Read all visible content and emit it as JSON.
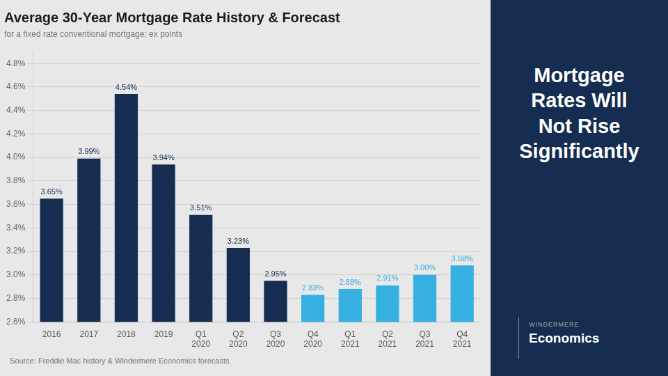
{
  "chart_data": {
    "type": "bar",
    "title": "Average 30-Year Mortgage Rate History & Forecast",
    "subtitle": "for a fixed rate conventional mortgage; ex points",
    "annotations": [
      "Source: Freddie Mac history & Windermere Economics forecasts",
      "Mortgage\nRates Will\nNot Rise\nSignificantly",
      "WINDERMERE",
      "Economics"
    ],
    "categories": [
      "2016",
      "2017",
      "2018",
      "2019",
      "Q1\n2020",
      "Q2\n2020",
      "Q3\n2020",
      "Q4\n2020",
      "Q1\n2021",
      "Q2\n2021",
      "Q3\n2021",
      "Q4\n2021"
    ],
    "values": [
      3.65,
      3.99,
      4.54,
      3.94,
      3.51,
      3.23,
      2.95,
      2.83,
      2.88,
      2.91,
      3.0,
      3.08
    ],
    "value_labels": [
      "3.65%",
      "3.99%",
      "4.54%",
      "3.94%",
      "3.51%",
      "3.23%",
      "2.95%",
      "2.83%",
      "2.88%",
      "2.91%",
      "3.00%",
      "3.08%"
    ],
    "colors": [
      "#152d50",
      "#152d50",
      "#152d50",
      "#152d50",
      "#152d50",
      "#152d50",
      "#152d50",
      "#35b0e0",
      "#35b0e0",
      "#35b0e0",
      "#35b0e0",
      "#35b0e0"
    ],
    "data_labels": true,
    "ylim": [
      2.6,
      4.9
    ],
    "yticks": [
      {
        "value": 2.6,
        "label": "2.6%"
      },
      {
        "value": 2.8,
        "label": "2.8%"
      },
      {
        "value": 3.0,
        "label": "3.0%"
      },
      {
        "value": 3.2,
        "label": "3.2%"
      },
      {
        "value": 3.4,
        "label": "3.4%"
      },
      {
        "value": 3.6,
        "label": "3.6%"
      },
      {
        "value": 3.8,
        "label": "3.8%"
      },
      {
        "value": 4.0,
        "label": "4.0%"
      },
      {
        "value": 4.2,
        "label": "4.2%"
      },
      {
        "value": 4.4,
        "label": "4.4%"
      },
      {
        "value": 4.6,
        "label": "4.6%"
      },
      {
        "value": 4.8,
        "label": "4.8%"
      }
    ],
    "grid": true
  }
}
